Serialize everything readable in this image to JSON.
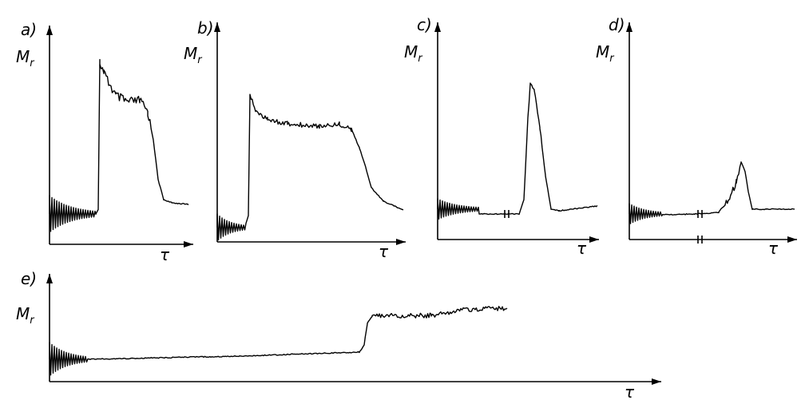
{
  "panels": [
    {
      "label": "a)",
      "y_label": "M",
      "y_label_sub": "r",
      "x_label": "τ"
    },
    {
      "label": "b)",
      "y_label": "M",
      "y_label_sub": "r",
      "x_label": "τ"
    },
    {
      "label": "c)",
      "y_label": "M",
      "y_label_sub": "r",
      "x_label": "τ"
    },
    {
      "label": "d)",
      "y_label": "M",
      "y_label_sub": "r",
      "x_label": "τ"
    },
    {
      "label": "e)",
      "y_label": "M",
      "y_label_sub": "r",
      "x_label": "τ"
    }
  ]
}
